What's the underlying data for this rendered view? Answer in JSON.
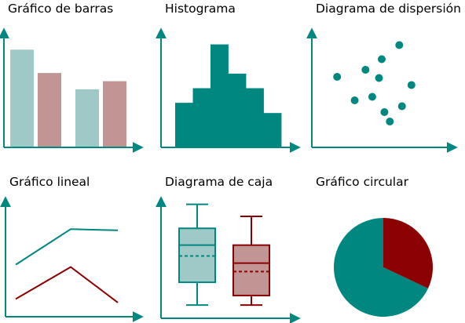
{
  "colors": {
    "teal": "#00877f",
    "teal_light": "#9ec9c6",
    "rose": "#c09593",
    "dark_red": "#8b0000",
    "axis": "#00877f"
  },
  "chart_data": [
    {
      "type": "bar",
      "title": "Gráfico de barras",
      "categories": [
        "",
        ""
      ],
      "series": [
        {
          "values": [
            8.3,
            4.9
          ]
        },
        {
          "values": [
            6.3,
            5.6
          ]
        }
      ],
      "ylim": [
        0,
        10
      ]
    },
    {
      "type": "bar",
      "title": "Histograma",
      "categories": [
        "",
        "",
        "",
        "",
        "",
        ""
      ],
      "values": [
        3,
        4,
        7,
        5,
        4,
        2.3
      ],
      "ylim": [
        0,
        8
      ]
    },
    {
      "type": "scatter",
      "title": "Diagrama de dispersión",
      "points": [
        [
          1.0,
          6.0
        ],
        [
          2.3,
          4.0
        ],
        [
          3.1,
          6.6
        ],
        [
          3.6,
          4.3
        ],
        [
          4.1,
          5.9
        ],
        [
          4.3,
          7.5
        ],
        [
          4.5,
          3.0
        ],
        [
          4.9,
          2.2
        ],
        [
          5.6,
          8.7
        ],
        [
          5.8,
          3.5
        ],
        [
          6.5,
          5.3
        ]
      ],
      "xlim": [
        0,
        9
      ],
      "ylim": [
        0,
        10
      ]
    },
    {
      "type": "line",
      "title": "Gráfico lineal",
      "x": [
        0,
        1,
        2
      ],
      "series": [
        {
          "values": [
            4.4,
            7.4,
            7.3
          ]
        },
        {
          "values": [
            1.5,
            4.2,
            1.2
          ]
        }
      ],
      "ylim": [
        0,
        10
      ]
    },
    {
      "type": "box",
      "title": "Diagrama de caja",
      "series": [
        {
          "min": 1.1,
          "q1": 3.0,
          "median": 6.1,
          "mean": 5.2,
          "q3": 7.5,
          "max": 9.5
        },
        {
          "min": 1.1,
          "q1": 1.9,
          "median": 4.6,
          "mean": 3.9,
          "q3": 6.1,
          "max": 8.5
        }
      ],
      "ylim": [
        0,
        10
      ]
    },
    {
      "type": "pie",
      "title": "Gráfico circular",
      "values": [
        68,
        32
      ]
    }
  ]
}
